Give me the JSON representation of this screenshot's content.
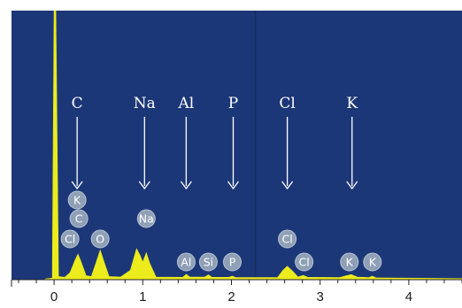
{
  "chart_data": {
    "type": "area",
    "xlabel": "",
    "ylabel": "",
    "xlim": [
      -0.48,
      4.6
    ],
    "ylim": [
      0,
      100
    ],
    "grid": false,
    "x_ticks": [
      "0",
      "1",
      "2",
      "3",
      "4"
    ],
    "x_tick_values": [
      0,
      1,
      2,
      3,
      4
    ],
    "colors": {
      "background": "#1c3778",
      "spectrum": "#ecec1c",
      "arrow": "#ffffff",
      "badge": "#8fa0b6",
      "cursor": "#163060"
    },
    "cursor_x": 2.27,
    "spectrum": [
      {
        "x": -0.1,
        "y": 0.3
      },
      {
        "x": -0.02,
        "y": 0.6
      },
      {
        "x": 0.0,
        "y": 100
      },
      {
        "x": 0.02,
        "y": 100
      },
      {
        "x": 0.05,
        "y": 1.2
      },
      {
        "x": 0.12,
        "y": 0.9
      },
      {
        "x": 0.18,
        "y": 2.6
      },
      {
        "x": 0.24,
        "y": 7.5
      },
      {
        "x": 0.27,
        "y": 9.5
      },
      {
        "x": 0.3,
        "y": 7.0
      },
      {
        "x": 0.36,
        "y": 1.5
      },
      {
        "x": 0.42,
        "y": 1.2
      },
      {
        "x": 0.47,
        "y": 6.0
      },
      {
        "x": 0.52,
        "y": 11.0
      },
      {
        "x": 0.57,
        "y": 6.0
      },
      {
        "x": 0.62,
        "y": 1.2
      },
      {
        "x": 0.75,
        "y": 1.0
      },
      {
        "x": 0.86,
        "y": 3.5
      },
      {
        "x": 0.93,
        "y": 11.5
      },
      {
        "x": 0.97,
        "y": 9.0
      },
      {
        "x": 1.0,
        "y": 6.5
      },
      {
        "x": 1.04,
        "y": 10.0
      },
      {
        "x": 1.08,
        "y": 6.0
      },
      {
        "x": 1.15,
        "y": 1.0
      },
      {
        "x": 1.45,
        "y": 0.9
      },
      {
        "x": 1.49,
        "y": 2.0
      },
      {
        "x": 1.53,
        "y": 1.0
      },
      {
        "x": 1.7,
        "y": 1.0
      },
      {
        "x": 1.74,
        "y": 1.8
      },
      {
        "x": 1.78,
        "y": 0.9
      },
      {
        "x": 1.97,
        "y": 0.9
      },
      {
        "x": 2.01,
        "y": 1.3
      },
      {
        "x": 2.05,
        "y": 0.8
      },
      {
        "x": 2.52,
        "y": 0.8
      },
      {
        "x": 2.58,
        "y": 3.5
      },
      {
        "x": 2.63,
        "y": 5.0
      },
      {
        "x": 2.69,
        "y": 3.2
      },
      {
        "x": 2.75,
        "y": 1.0
      },
      {
        "x": 2.81,
        "y": 1.6
      },
      {
        "x": 2.86,
        "y": 0.9
      },
      {
        "x": 3.22,
        "y": 0.8
      },
      {
        "x": 3.29,
        "y": 1.4
      },
      {
        "x": 3.35,
        "y": 1.9
      },
      {
        "x": 3.42,
        "y": 1.0
      },
      {
        "x": 3.55,
        "y": 0.8
      },
      {
        "x": 3.59,
        "y": 1.3
      },
      {
        "x": 3.63,
        "y": 0.7
      },
      {
        "x": 4.6,
        "y": 0.4
      }
    ],
    "arrows": [
      {
        "text": "C",
        "x": 0.26
      },
      {
        "text": "Na",
        "x": 1.02
      },
      {
        "text": "Al",
        "x": 1.49
      },
      {
        "text": "P",
        "x": 2.02
      },
      {
        "text": "Cl",
        "x": 2.63
      },
      {
        "text": "K",
        "x": 3.36
      }
    ],
    "peak_labels": [
      {
        "text": "K",
        "x": 0.26,
        "level": 3
      },
      {
        "text": "C",
        "x": 0.28,
        "level": 2
      },
      {
        "text": "Cl",
        "x": 0.18,
        "level": 1
      },
      {
        "text": "O",
        "x": 0.52,
        "level": 1
      },
      {
        "text": "Na",
        "x": 1.04,
        "level": 2
      },
      {
        "text": "Al",
        "x": 1.49,
        "level": 0
      },
      {
        "text": "Si",
        "x": 1.74,
        "level": 0
      },
      {
        "text": "P",
        "x": 2.01,
        "level": 0
      },
      {
        "text": "Cl",
        "x": 2.63,
        "level": 1
      },
      {
        "text": "Cl",
        "x": 2.82,
        "level": 0
      },
      {
        "text": "K",
        "x": 3.33,
        "level": 0
      },
      {
        "text": "K",
        "x": 3.59,
        "level": 0
      }
    ]
  }
}
